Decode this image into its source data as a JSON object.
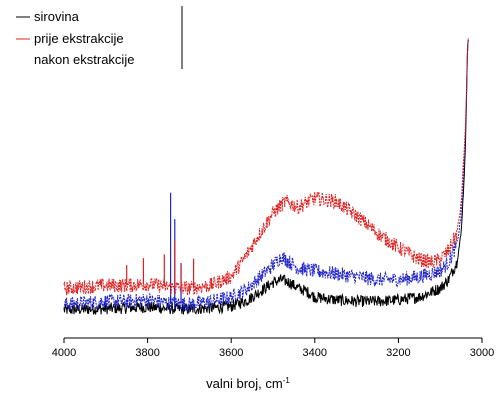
{
  "chart_data": {
    "type": "line",
    "title": "",
    "xlabel": "valni broj, cm",
    "xlabel_sup": "-1",
    "ylabel": "",
    "xlim": [
      4000,
      3000
    ],
    "x_reversed": true,
    "grid": false,
    "y_axis_ticks": false,
    "xticks": [
      4000,
      3800,
      3600,
      3400,
      3200,
      3000
    ],
    "xtick_labels": [
      "4000",
      "3800",
      "3600",
      "3400",
      "3200",
      "3000"
    ],
    "legend": {
      "placement": "top-left",
      "entries": [
        "sirovina",
        "prije ekstrakcije",
        "nakon ekstrakcije"
      ]
    },
    "series": [
      {
        "name": "sirovina",
        "color": "#000000",
        "style": "solid",
        "x": [
          4000,
          3950,
          3900,
          3850,
          3800,
          3750,
          3700,
          3650,
          3600,
          3560,
          3530,
          3500,
          3480,
          3460,
          3440,
          3420,
          3400,
          3350,
          3300,
          3250,
          3200,
          3150,
          3100,
          3080,
          3060,
          3050,
          3045,
          3040,
          3037,
          3035,
          3032
        ],
        "y": [
          0.055,
          0.058,
          0.06,
          0.062,
          0.065,
          0.06,
          0.058,
          0.062,
          0.068,
          0.09,
          0.12,
          0.15,
          0.16,
          0.15,
          0.13,
          0.12,
          0.1,
          0.09,
          0.085,
          0.085,
          0.09,
          0.1,
          0.13,
          0.16,
          0.22,
          0.32,
          0.45,
          0.6,
          0.8,
          0.95,
          1.0
        ],
        "noise": 0.02,
        "spikes": []
      },
      {
        "name": "prije ekstrakcije",
        "color": "#e02020",
        "style": "dashed",
        "x": [
          4000,
          3950,
          3900,
          3850,
          3800,
          3750,
          3700,
          3650,
          3600,
          3570,
          3540,
          3500,
          3470,
          3440,
          3400,
          3350,
          3300,
          3250,
          3200,
          3150,
          3120,
          3100,
          3080,
          3060,
          3050,
          3045,
          3040,
          3037,
          3035,
          3032
        ],
        "y": [
          0.13,
          0.135,
          0.14,
          0.14,
          0.145,
          0.135,
          0.13,
          0.14,
          0.17,
          0.23,
          0.3,
          0.39,
          0.43,
          0.41,
          0.44,
          0.43,
          0.38,
          0.32,
          0.27,
          0.23,
          0.22,
          0.23,
          0.26,
          0.32,
          0.42,
          0.55,
          0.68,
          0.82,
          0.95,
          1.0
        ],
        "noise": 0.025,
        "spikes": [
          [
            3850,
            0.07
          ],
          [
            3810,
            0.09
          ],
          [
            3760,
            0.11
          ],
          [
            3735,
            0.16
          ],
          [
            3720,
            0.08
          ],
          [
            3690,
            0.1
          ]
        ]
      },
      {
        "name": "nakon ekstrakcije",
        "color": "#1f22c8",
        "style": "dashed",
        "x": [
          4000,
          3950,
          3900,
          3850,
          3800,
          3750,
          3700,
          3650,
          3600,
          3560,
          3530,
          3500,
          3480,
          3460,
          3440,
          3400,
          3350,
          3300,
          3250,
          3200,
          3150,
          3100,
          3080,
          3060,
          3050,
          3045,
          3040,
          3037,
          3035,
          3032
        ],
        "y": [
          0.075,
          0.08,
          0.085,
          0.085,
          0.09,
          0.08,
          0.075,
          0.085,
          0.1,
          0.13,
          0.17,
          0.21,
          0.24,
          0.22,
          0.2,
          0.19,
          0.18,
          0.17,
          0.16,
          0.16,
          0.17,
          0.19,
          0.22,
          0.28,
          0.38,
          0.5,
          0.65,
          0.8,
          0.94,
          1.0
        ],
        "noise": 0.025,
        "spikes": [
          [
            3745,
            0.38
          ],
          [
            3735,
            0.29
          ],
          [
            3720,
            0.14
          ]
        ]
      }
    ]
  }
}
